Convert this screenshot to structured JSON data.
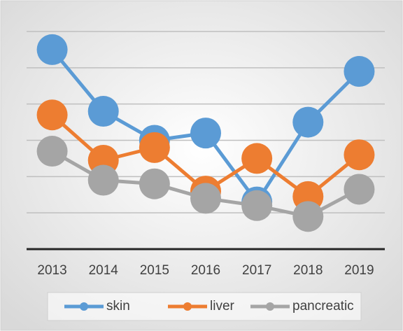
{
  "chart_data": {
    "type": "line",
    "categories": [
      "2013",
      "2014",
      "2015",
      "2016",
      "2017",
      "2018",
      "2019"
    ],
    "series": [
      {
        "name": "skin",
        "color": "#5b9bd5",
        "values": [
          5.5,
          3.8,
          3.0,
          3.2,
          1.3,
          3.5,
          4.9
        ]
      },
      {
        "name": "liver",
        "color": "#ed7d31",
        "values": [
          3.7,
          2.45,
          2.8,
          1.6,
          2.5,
          1.45,
          2.6
        ]
      },
      {
        "name": "pancreatic",
        "color": "#a5a5a5",
        "values": [
          2.7,
          1.9,
          1.8,
          1.4,
          1.2,
          0.9,
          1.65
        ]
      }
    ],
    "ylim": [
      0,
      6
    ],
    "yticks": [
      0,
      1,
      2,
      3,
      4,
      5,
      6
    ],
    "grid": true,
    "legend": "bottom"
  }
}
